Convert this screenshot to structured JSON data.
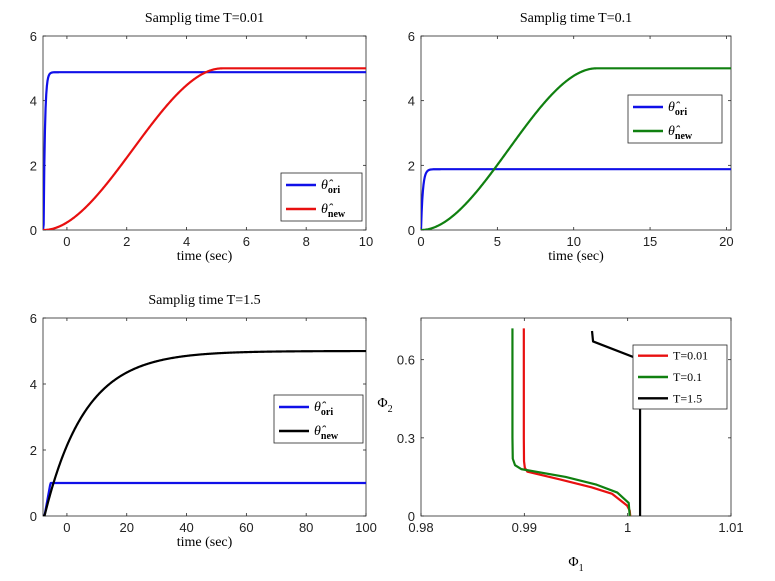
{
  "chart_data": [
    {
      "type": "line",
      "title": "Samplig time T=0.01",
      "xlabel": "time (sec)",
      "ylabel": "",
      "xlim": [
        -0.8,
        10
      ],
      "ylim": [
        0,
        6
      ],
      "xticks": [
        0,
        2,
        4,
        6,
        8,
        10
      ],
      "yticks": [
        0,
        2,
        4,
        6
      ],
      "legend": "bottom-right",
      "series": [
        {
          "name": "θ̂ ori",
          "sym": "θ̂",
          "sub": "ori",
          "color": "#1010e8",
          "model": "step",
          "final": 4.88,
          "t0": -0.78,
          "tau": 0.045
        },
        {
          "name": "θ̂ new",
          "sym": "θ̂",
          "sub": "new",
          "color": "#e81010",
          "model": "smooth",
          "final": 5.0,
          "t0": -0.78,
          "t1": 5.2
        }
      ]
    },
    {
      "type": "line",
      "title": "Samplig time T=0.1",
      "xlabel": "time (sec)",
      "ylabel": "",
      "xlim": [
        0,
        20.3
      ],
      "ylim": [
        0,
        6
      ],
      "xticks": [
        0,
        5,
        10,
        15,
        20
      ],
      "yticks": [
        0,
        2,
        4,
        6
      ],
      "legend": "top-right",
      "series": [
        {
          "name": "θ̂ ori",
          "sym": "θ̂",
          "sub": "ori",
          "color": "#1010e8",
          "model": "step",
          "final": 1.88,
          "t0": 0.0,
          "tau": 0.12
        },
        {
          "name": "θ̂ new",
          "sym": "θ̂",
          "sub": "new",
          "color": "#108010",
          "model": "smooth",
          "final": 5.0,
          "t0": 0.0,
          "t1": 11.5
        }
      ]
    },
    {
      "type": "line",
      "title": "Samplig time T=1.5",
      "xlabel": "time (sec)",
      "ylabel": "",
      "xlim": [
        -8,
        100
      ],
      "ylim": [
        0,
        6
      ],
      "xticks": [
        0,
        20,
        40,
        60,
        80,
        100
      ],
      "yticks": [
        0,
        2,
        4,
        6
      ],
      "legend": "middle-right",
      "series": [
        {
          "name": "θ̂ ori",
          "sym": "θ̂",
          "sub": "ori",
          "color": "#1010e8",
          "model": "ramp",
          "final": 1.0,
          "t0": -7.5,
          "t1": -5.5
        },
        {
          "name": "θ̂ new",
          "sym": "θ̂",
          "sub": "new",
          "color": "#000000",
          "model": "exp",
          "final": 5.0,
          "t0": -7.5,
          "tau": 13.5
        }
      ]
    },
    {
      "type": "line",
      "title": "",
      "xlabel": "Φ1",
      "xlabel_sym": "Φ",
      "xlabel_sub": "1",
      "ylabel": "Φ2",
      "ylabel_sym": "Φ",
      "ylabel_sub": "2",
      "xlim": [
        0.98,
        1.01
      ],
      "ylim": [
        0,
        0.76
      ],
      "xticks": [
        0.98,
        0.99,
        1,
        1.01
      ],
      "xtick_labels": [
        "0.98",
        "0.99",
        "1",
        "1.01"
      ],
      "yticks": [
        0,
        0.3,
        0.6
      ],
      "ytick_labels": [
        "0",
        "0.3",
        "0.6"
      ],
      "legend": "top-right",
      "series": [
        {
          "name": "T=0.01",
          "color": "#e81010",
          "x": [
            0.98995,
            0.98995,
            0.98995,
            0.98997,
            0.99005,
            0.9903,
            0.9935,
            0.9965,
            0.9985,
            0.99995,
            1.0002,
            1.00025
          ],
          "y": [
            0.72,
            0.5,
            0.3,
            0.21,
            0.185,
            0.17,
            0.14,
            0.11,
            0.085,
            0.04,
            0.02,
            0.0
          ]
        },
        {
          "name": "T=0.1",
          "color": "#108010",
          "x": [
            0.98885,
            0.98885,
            0.98885,
            0.98888,
            0.9891,
            0.9897,
            0.994,
            0.997,
            0.999,
            1.0001,
            1.0002
          ],
          "y": [
            0.72,
            0.5,
            0.3,
            0.22,
            0.195,
            0.18,
            0.15,
            0.12,
            0.09,
            0.05,
            0.0
          ]
        },
        {
          "name": "T=1.5",
          "color": "#000000",
          "x": [
            0.99655,
            0.99665,
            1.0012,
            1.0012,
            1.0012
          ],
          "y": [
            0.71,
            0.67,
            0.6,
            0.3,
            0.0
          ]
        }
      ]
    }
  ]
}
